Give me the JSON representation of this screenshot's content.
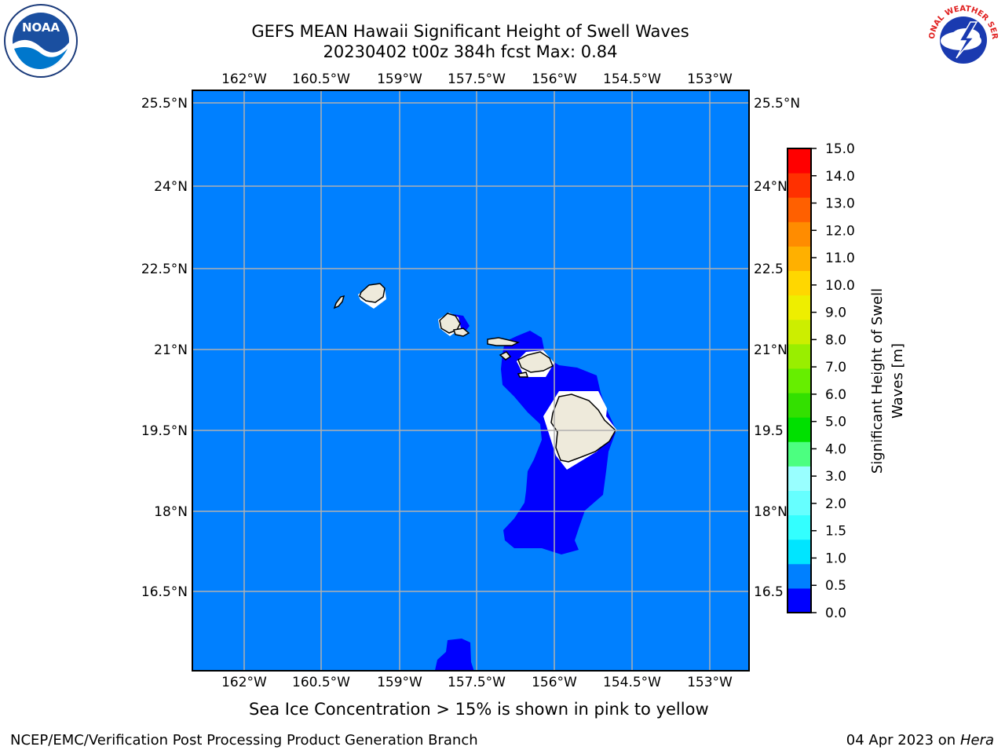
{
  "title": {
    "line1": "GEFS MEAN Hawaii Significant Height of Swell Waves",
    "line2": "20230402 t00z 384h fcst   Max: 0.84"
  },
  "logos": {
    "left_icon": "noaa-logo",
    "left_text": "NOAA",
    "right_icon": "national-weather-service-logo",
    "right_text": "NATIONAL WEATHER SERVICE"
  },
  "map": {
    "ocean_color": "#0080ff",
    "swell_low_color": "#0000ff",
    "land_color": "#eeeadb",
    "grid_color": "#b0b0b0",
    "lon_ticks": [
      "162°W",
      "160.5°W",
      "159°W",
      "157.5°W",
      "156°W",
      "154.5°W",
      "153°W"
    ],
    "lat_ticks_left": [
      "25.5°N",
      "24°N",
      "22.5°N",
      "21°N",
      "19.5°N",
      "18°N",
      "16.5°N"
    ],
    "lat_ticks_right": [
      "25.5°N",
      "24°N",
      "22.5",
      "21°N",
      "19.5",
      "18°N",
      "16.5"
    ]
  },
  "colorbar": {
    "label_line1": "Significant Height of Swell",
    "label_line2": "Waves [m]",
    "ticks": [
      "15.0",
      "14.0",
      "13.0",
      "12.0",
      "11.0",
      "10.0",
      "9.0",
      "8.0",
      "7.0",
      "6.0",
      "5.0",
      "4.0",
      "3.0",
      "2.0",
      "1.5",
      "1.0",
      "0.5",
      "0.0"
    ],
    "colors_bottom_to_top": [
      "#0000ff",
      "#0080ff",
      "#00e5ff",
      "#33ffff",
      "#66ffff",
      "#99ffff",
      "#4cff80",
      "#00e000",
      "#33e000",
      "#66ee00",
      "#99ee00",
      "#ccee00",
      "#eeee00",
      "#ffd700",
      "#ffb000",
      "#ff8c00",
      "#ff6000",
      "#ff3000",
      "#ff0000"
    ]
  },
  "caption": "Sea Ice Concentration > 15% is shown in pink to yellow",
  "footer": {
    "left": "NCEP/EMC/Verification Post Processing Product Generation Branch",
    "right_date": "04 Apr 2023 on",
    "right_host": "Hera"
  }
}
